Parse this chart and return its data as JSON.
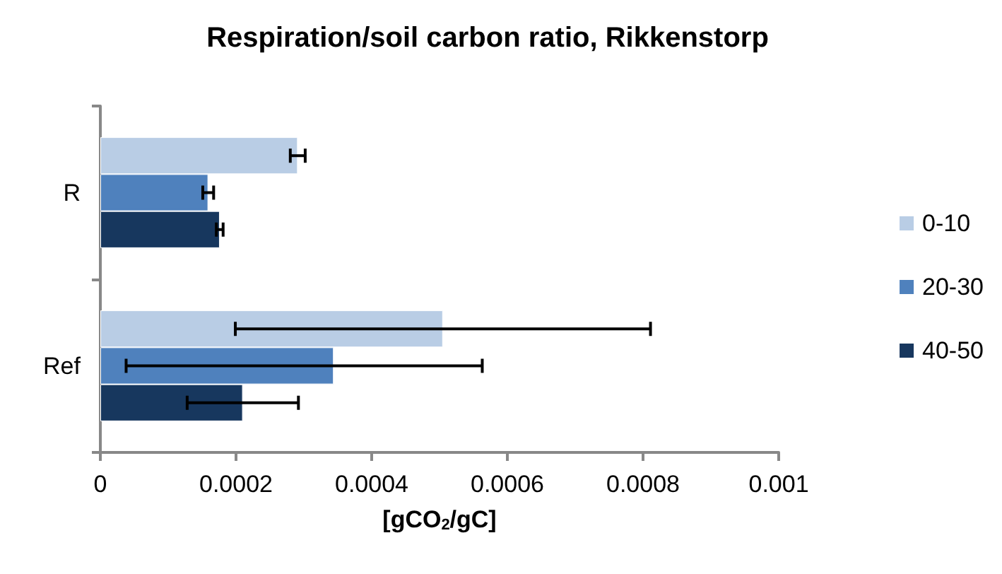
{
  "chart_data": {
    "type": "bar",
    "orientation": "horizontal",
    "title": "Respiration/soil carbon ratio, Rikkenstorp",
    "xlabel": "[gCO$_{2}$/gC]",
    "categories": [
      "R",
      "Ref"
    ],
    "series": [
      {
        "name": "0-10",
        "color": "#b9cde5",
        "values": [
          0.000291,
          0.000505
        ],
        "errors": [
          1.1e-05,
          [
            0.000199,
            0.000811
          ]
        ]
      },
      {
        "name": "20-30",
        "color": "#4f81bd",
        "values": [
          0.000159,
          0.000344
        ],
        "errors": [
          8e-06,
          [
            3.8e-05,
            0.000563
          ]
        ]
      },
      {
        "name": "40-50",
        "color": "#17375e",
        "values": [
          0.000176,
          0.00021
        ],
        "errors": [
          5e-06,
          [
            0.000128,
            0.000292
          ]
        ]
      }
    ],
    "xlim": [
      0,
      0.001
    ],
    "xticks": [
      0,
      0.0002,
      0.0004,
      0.0006,
      0.0008,
      0.001
    ],
    "grid": false,
    "legend": "right"
  }
}
